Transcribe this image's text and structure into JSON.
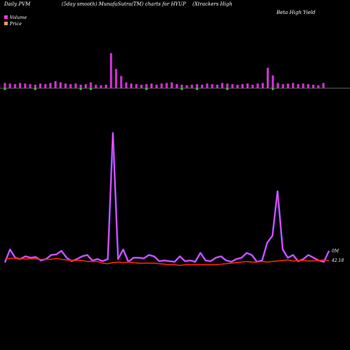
{
  "header": {
    "left": "Daily PVM",
    "center": "(5day smooth) MunafaSutra(TM) charts for HYUP",
    "right_line1": "(Xtrackers High",
    "right_line2": "Beta  High Yield"
  },
  "legend": [
    {
      "label": "Volume",
      "color": "#ff33ff"
    },
    {
      "label": "Price",
      "color": "#ff9966"
    }
  ],
  "colors": {
    "up_bar": "#cc33cc",
    "down_bar": "#33cc33",
    "volume_line": "#cc33cc",
    "volume_line_outer": "#7a4aff",
    "price_line": "#ff2200"
  },
  "chart_data": [
    {
      "type": "bar",
      "name": "volume-bars",
      "values": [
        9,
        8,
        7,
        9,
        8,
        7,
        6,
        8,
        7,
        9,
        12,
        10,
        8,
        7,
        8,
        6,
        7,
        10,
        6,
        5,
        6,
        60,
        33,
        21,
        10,
        8,
        7,
        6,
        7,
        8,
        6,
        8,
        9,
        10,
        7,
        6,
        5,
        6,
        7,
        6,
        8,
        7,
        6,
        9,
        8,
        7,
        6,
        7,
        8,
        6,
        8,
        9,
        35,
        22,
        9,
        7,
        8,
        9,
        7,
        8,
        7,
        6,
        5,
        9
      ],
      "down": [
        true,
        false,
        false,
        false,
        false,
        false,
        true,
        false,
        false,
        false,
        false,
        false,
        false,
        false,
        false,
        true,
        false,
        true,
        false,
        false,
        false,
        false,
        false,
        false,
        false,
        false,
        false,
        false,
        true,
        false,
        false,
        false,
        false,
        false,
        false,
        true,
        false,
        false,
        true,
        false,
        false,
        false,
        false,
        false,
        true,
        false,
        false,
        false,
        false,
        false,
        false,
        false,
        false,
        true,
        false,
        false,
        false,
        false,
        false,
        false,
        false,
        false,
        false,
        false
      ]
    },
    {
      "type": "line",
      "name": "volume-line",
      "values": [
        1,
        20,
        8,
        6,
        10,
        8,
        9,
        4,
        6,
        12,
        13,
        18,
        8,
        3,
        6,
        10,
        12,
        4,
        6,
        3,
        6,
        190,
        6,
        20,
        2,
        8,
        8,
        7,
        12,
        10,
        3,
        4,
        3,
        2,
        10,
        3,
        4,
        2,
        15,
        4,
        3,
        8,
        10,
        4,
        2,
        6,
        8,
        15,
        12,
        2,
        4,
        30,
        40,
        105,
        20,
        8,
        12,
        3,
        6,
        12,
        8,
        4,
        2,
        18
      ],
      "label": "0M"
    },
    {
      "type": "line",
      "name": "price-line",
      "values": [
        42.21,
        42.22,
        42.22,
        42.21,
        42.21,
        42.21,
        42.21,
        42.2,
        42.2,
        42.2,
        42.22,
        42.2,
        42.19,
        42.18,
        42.18,
        42.18,
        42.16,
        42.16,
        42.16,
        42.13,
        42.12,
        42.14,
        42.15,
        42.14,
        42.15,
        42.14,
        42.13,
        42.13,
        42.13,
        42.13,
        42.12,
        42.11,
        42.1,
        42.1,
        42.09,
        42.1,
        42.1,
        42.1,
        42.1,
        42.1,
        42.1,
        42.1,
        42.11,
        42.12,
        42.13,
        42.14,
        42.15,
        42.16,
        42.15,
        42.15,
        42.16,
        42.15,
        42.16,
        42.17,
        42.18,
        42.19,
        42.17,
        42.18,
        42.18,
        42.17,
        42.17,
        42.18,
        42.19,
        42.18
      ],
      "label": "42.18"
    }
  ]
}
